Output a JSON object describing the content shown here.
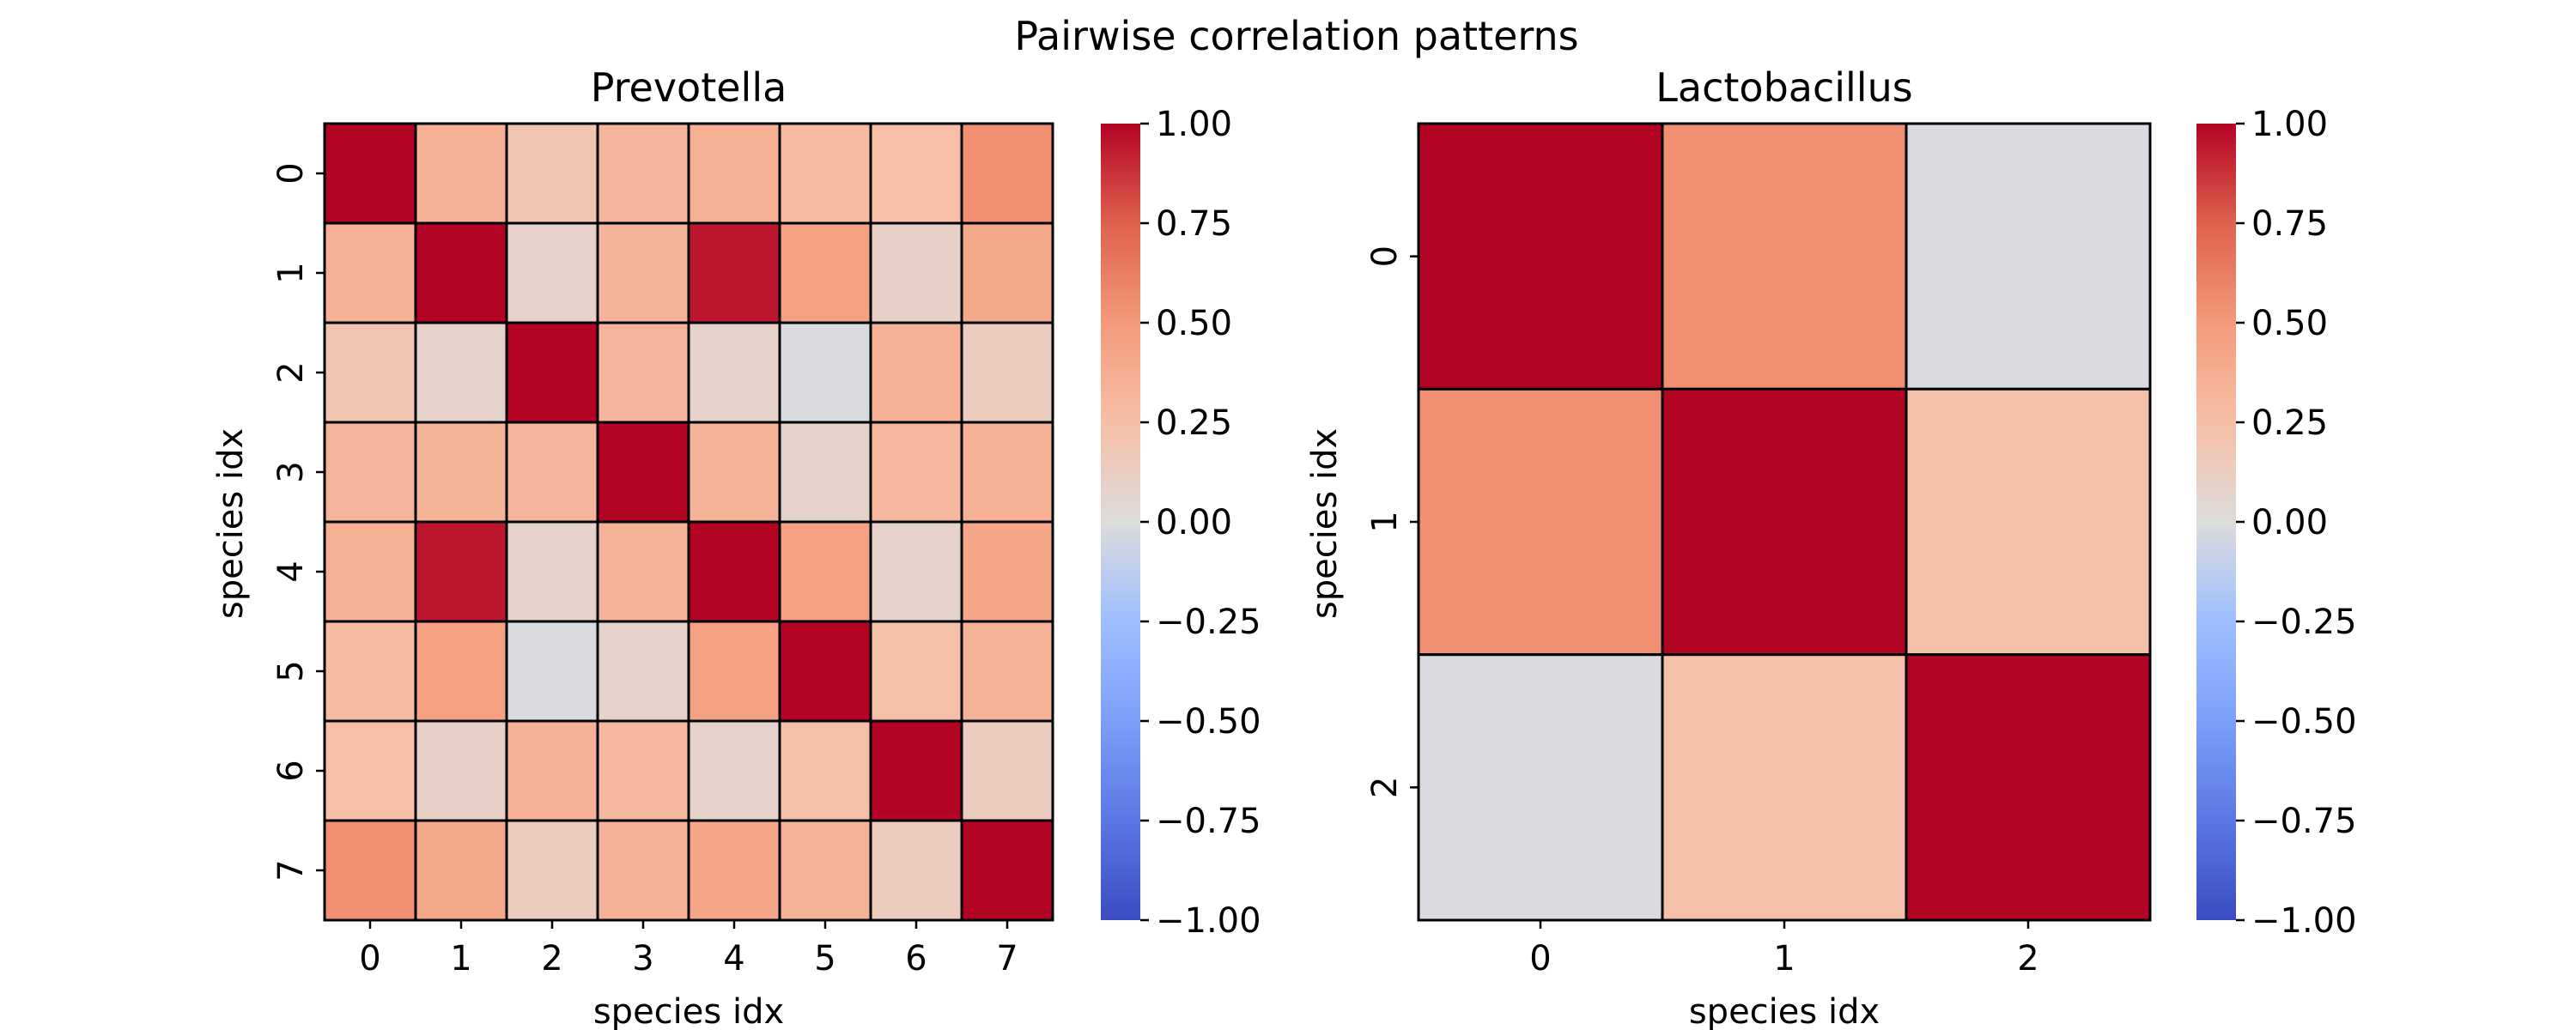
{
  "figure": {
    "title": "Pairwise correlation patterns"
  },
  "chart_data": [
    {
      "type": "heatmap",
      "title": "Prevotella",
      "xlabel": "species idx",
      "ylabel": "species idx",
      "x_categories": [
        "0",
        "1",
        "2",
        "3",
        "4",
        "5",
        "6",
        "7"
      ],
      "y_categories": [
        "0",
        "1",
        "2",
        "3",
        "4",
        "5",
        "6",
        "7"
      ],
      "values": [
        [
          1.0,
          0.35,
          0.2,
          0.32,
          0.36,
          0.28,
          0.25,
          0.55
        ],
        [
          0.35,
          1.0,
          0.08,
          0.33,
          0.95,
          0.45,
          0.1,
          0.4
        ],
        [
          0.2,
          0.08,
          1.0,
          0.32,
          0.08,
          -0.02,
          0.35,
          0.14
        ],
        [
          0.32,
          0.33,
          0.32,
          1.0,
          0.34,
          0.08,
          0.3,
          0.35
        ],
        [
          0.36,
          0.95,
          0.08,
          0.34,
          1.0,
          0.45,
          0.08,
          0.42
        ],
        [
          0.28,
          0.45,
          -0.02,
          0.08,
          0.45,
          1.0,
          0.24,
          0.34
        ],
        [
          0.25,
          0.1,
          0.35,
          0.3,
          0.08,
          0.24,
          1.0,
          0.14
        ],
        [
          0.55,
          0.4,
          0.14,
          0.35,
          0.42,
          0.34,
          0.14,
          1.0
        ]
      ],
      "colorbar": {
        "range": [
          -1.0,
          1.0
        ],
        "ticks": [
          "1.00",
          "0.75",
          "0.50",
          "0.25",
          "0.00",
          "−0.25",
          "−0.50",
          "−0.75",
          "−1.00"
        ],
        "colormap": "coolwarm"
      }
    },
    {
      "type": "heatmap",
      "title": "Lactobacillus",
      "xlabel": "species idx",
      "ylabel": "species idx",
      "x_categories": [
        "0",
        "1",
        "2"
      ],
      "y_categories": [
        "0",
        "1",
        "2"
      ],
      "values": [
        [
          1.0,
          0.55,
          -0.02
        ],
        [
          0.55,
          1.0,
          0.24
        ],
        [
          -0.02,
          0.24,
          1.0
        ]
      ],
      "colorbar": {
        "range": [
          -1.0,
          1.0
        ],
        "ticks": [
          "1.00",
          "0.75",
          "0.50",
          "0.25",
          "0.00",
          "−0.25",
          "−0.50",
          "−0.75",
          "−1.00"
        ],
        "colormap": "coolwarm"
      }
    }
  ]
}
